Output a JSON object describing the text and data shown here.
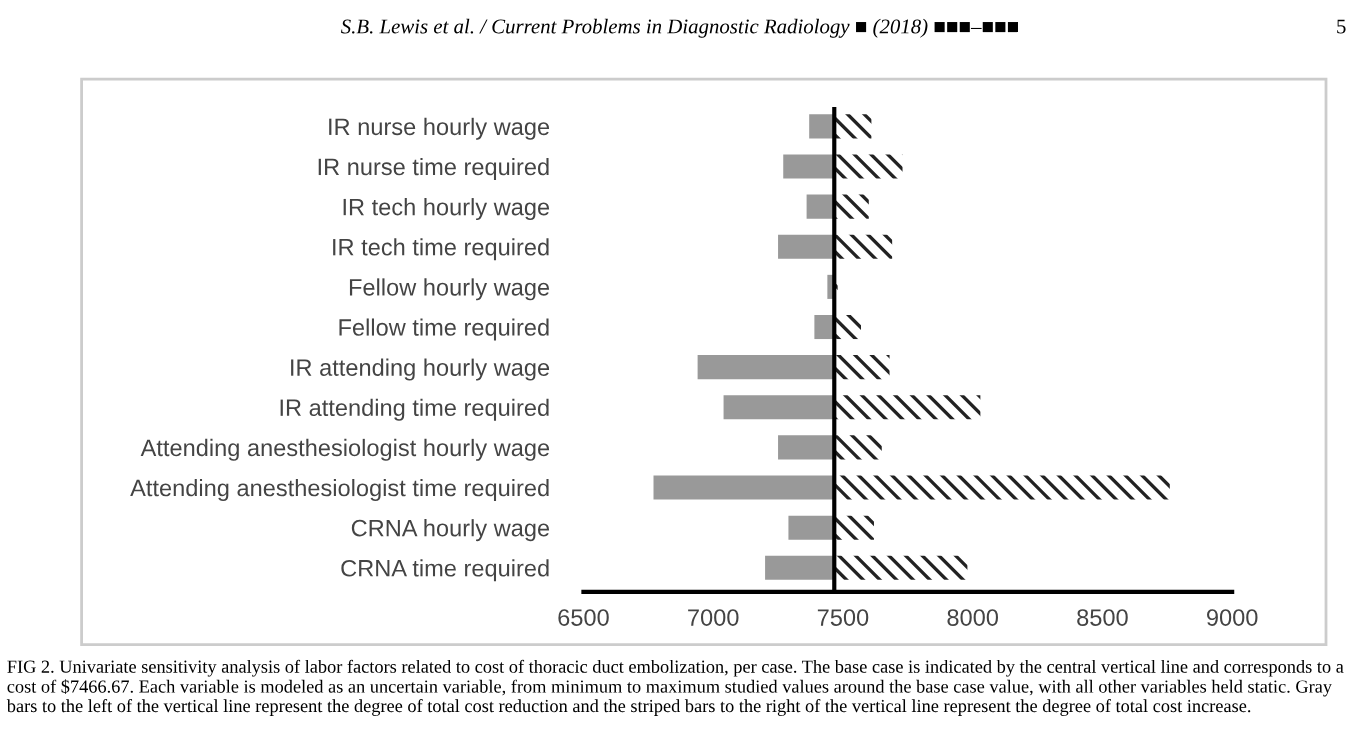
{
  "chart_data": {
    "type": "bar",
    "orientation": "horizontal",
    "categories": [
      "IR nurse hourly wage",
      "IR nurse time required",
      "IR tech hourly wage",
      "IR tech time required",
      "Fellow hourly wage",
      "Fellow time required",
      "IR attending hourly wage",
      "IR attending time required",
      "Attending anesthesiologist hourly wage",
      "Attending anesthesiologist time required",
      "CRNA hourly wage",
      "CRNA time required"
    ],
    "series": [
      {
        "color": "#999999",
        "base": [
          7370,
          7270,
          7360,
          7250,
          7440,
          7390,
          6940,
          7040,
          7250,
          6770,
          7290,
          7200
        ],
        "values": [
          97,
          197,
          107,
          217,
          27,
          77,
          527,
          427,
          217,
          697,
          177,
          267
        ]
      },
      {
        "color": "#222222",
        "base": [
          7466.67,
          7466.67,
          7466.67,
          7466.67,
          7466.67,
          7466.67,
          7466.67,
          7466.67,
          7466.67,
          7466.67,
          7466.67,
          7466.67
        ],
        "values": [
          143,
          263,
          133,
          223,
          13,
          103,
          213,
          563,
          183,
          1293,
          153,
          513
        ]
      }
    ],
    "xlim": [
      6500,
      9000
    ],
    "xticks": [
      6500,
      7000,
      7500,
      8000,
      8500,
      9000
    ],
    "ref_lines": [
      {
        "axis": "x",
        "value": 7466.67,
        "color": "#000000"
      }
    ],
    "grid": false,
    "legend": false,
    "annotations": [
      "S.B. Lewis et al. / Current Problems in Diagnostic Radiology ■ (2018) ■■■–■■■",
      "5",
      "FIG 2. Univariate sensitivity analysis of labor factors related to cost of thoracic duct embolization, per case. The base case is indicated by the central vertical line and corresponds to a cost of $7466.67. Each variable is modeled as an uncertain variable, from minimum to maximum studied values around the base case value, with all other variables held static. Gray bars to the left of the vertical line represent the degree of total cost reduction and the striped bars to the right of the vertical line represent the degree of total cost increase."
    ]
  }
}
